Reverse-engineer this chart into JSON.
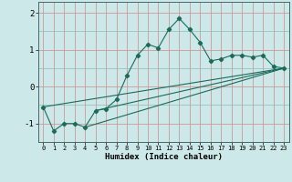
{
  "xlabel": "Humidex (Indice chaleur)",
  "ylabel": "",
  "background_color": "#cce8e8",
  "grid_color_teal": "#88bbbb",
  "grid_color_red": "#cc9999",
  "line_color": "#1a6b5a",
  "xlim": [
    -0.5,
    23.5
  ],
  "ylim": [
    -1.5,
    2.3
  ],
  "xticks": [
    0,
    1,
    2,
    3,
    4,
    5,
    6,
    7,
    8,
    9,
    10,
    11,
    12,
    13,
    14,
    15,
    16,
    17,
    18,
    19,
    20,
    21,
    22,
    23
  ],
  "yticks": [
    -1,
    0,
    1,
    2
  ],
  "series": [
    [
      0,
      -0.55
    ],
    [
      1,
      -1.2
    ],
    [
      2,
      -1.0
    ],
    [
      3,
      -1.0
    ],
    [
      4,
      -1.1
    ],
    [
      5,
      -0.65
    ],
    [
      6,
      -0.6
    ],
    [
      7,
      -0.35
    ],
    [
      8,
      0.3
    ],
    [
      9,
      0.85
    ],
    [
      10,
      1.15
    ],
    [
      11,
      1.05
    ],
    [
      12,
      1.55
    ],
    [
      13,
      1.85
    ],
    [
      14,
      1.55
    ],
    [
      15,
      1.2
    ],
    [
      16,
      0.7
    ],
    [
      17,
      0.75
    ],
    [
      18,
      0.85
    ],
    [
      19,
      0.85
    ],
    [
      20,
      0.8
    ],
    [
      21,
      0.85
    ],
    [
      22,
      0.55
    ],
    [
      23,
      0.5
    ]
  ],
  "linear_lines": [
    [
      0,
      -0.55,
      23,
      0.5
    ],
    [
      4,
      -1.1,
      23,
      0.5
    ],
    [
      5,
      -0.65,
      23,
      0.5
    ]
  ]
}
